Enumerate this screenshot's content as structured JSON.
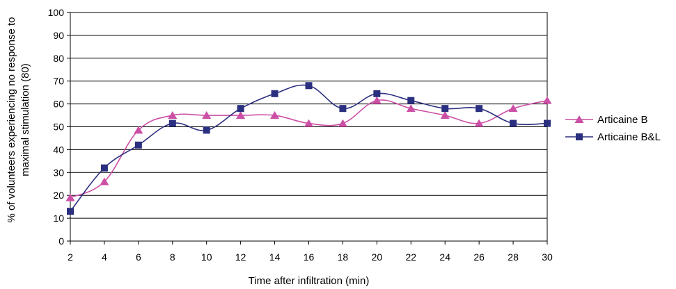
{
  "chart_data": {
    "type": "line",
    "title": "",
    "xlabel": "Time after infiltration (min)",
    "ylabel_lines": [
      "% of volunteers experiencing no response to",
      "maximal stimulation (80)"
    ],
    "x": [
      2,
      4,
      6,
      8,
      10,
      12,
      14,
      16,
      18,
      20,
      22,
      24,
      26,
      28,
      30
    ],
    "xlim": [
      2,
      30
    ],
    "ylim": [
      0,
      100
    ],
    "yticks": [
      0,
      10,
      20,
      30,
      40,
      50,
      60,
      70,
      80,
      90,
      100
    ],
    "grid": true,
    "legend": "right",
    "series": [
      {
        "name": "Articaine B",
        "color": "#cc4fa6",
        "marker": "triangle",
        "values": [
          19,
          26,
          48.5,
          55,
          55,
          55,
          55,
          51.5,
          51.5,
          61.5,
          58,
          55,
          51.5,
          58,
          61.5
        ]
      },
      {
        "name": "Articaine B&L",
        "color": "#2b2f7f",
        "marker": "square",
        "values": [
          13,
          32,
          42,
          51.5,
          48.5,
          58,
          64.5,
          68,
          58,
          64.5,
          61.5,
          58,
          58,
          51.5,
          51.5
        ]
      }
    ]
  }
}
